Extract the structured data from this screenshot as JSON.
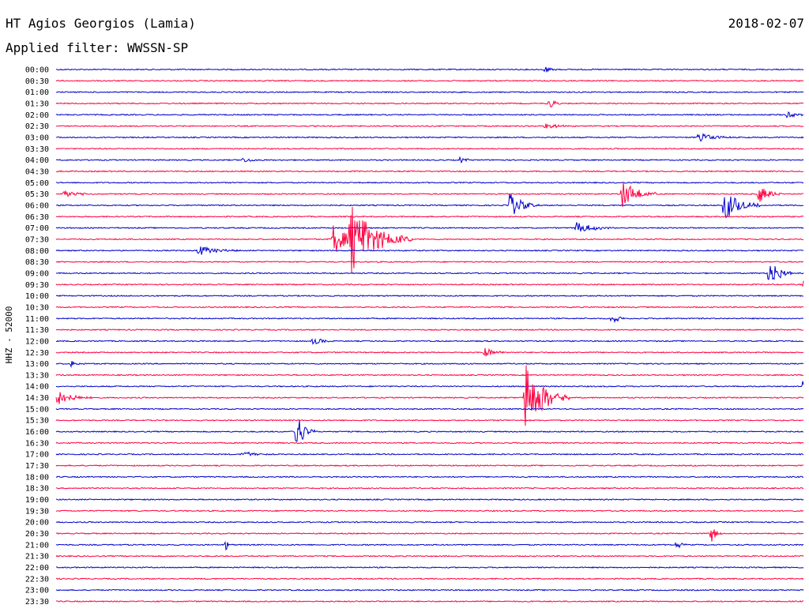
{
  "header": {
    "station": "HT Agios Georgios (Lamia)",
    "date": "2018-02-07",
    "filter": "Applied filter: WWSSN-SP"
  },
  "colors": {
    "blue": "#0000cc",
    "red": "#ff0040"
  },
  "chart_data": {
    "type": "line",
    "ylabel": "HHZ - 52000",
    "row_labels": [
      "00:00",
      "00:30",
      "01:00",
      "01:30",
      "02:00",
      "02:30",
      "03:00",
      "03:30",
      "04:00",
      "04:30",
      "05:00",
      "05:30",
      "06:00",
      "06:30",
      "07:00",
      "07:30",
      "08:00",
      "08:30",
      "09:00",
      "09:30",
      "10:00",
      "10:30",
      "11:00",
      "11:30",
      "12:00",
      "12:30",
      "13:00",
      "13:30",
      "14:00",
      "14:30",
      "15:00",
      "15:30",
      "16:00",
      "16:30",
      "17:00",
      "17:30",
      "18:00",
      "18:30",
      "19:00",
      "19:30",
      "20:00",
      "20:30",
      "21:00",
      "21:30",
      "22:00",
      "22:30",
      "23:00",
      "23:30"
    ],
    "minutes_per_row": 30,
    "events": [
      {
        "row": 0,
        "minute": 19.6,
        "amp": 0.4,
        "dur": 0.6
      },
      {
        "row": 3,
        "minute": 19.8,
        "amp": 0.5,
        "dur": 0.6
      },
      {
        "row": 4,
        "minute": 29.3,
        "amp": 0.3,
        "dur": 1.0
      },
      {
        "row": 5,
        "minute": 19.6,
        "amp": 0.3,
        "dur": 1.2
      },
      {
        "row": 6,
        "minute": 25.8,
        "amp": 0.5,
        "dur": 1.5
      },
      {
        "row": 8,
        "minute": 7.5,
        "amp": 0.3,
        "dur": 0.8
      },
      {
        "row": 8,
        "minute": 16.2,
        "amp": 0.3,
        "dur": 0.6
      },
      {
        "row": 11,
        "minute": 0.3,
        "amp": 0.4,
        "dur": 1.2
      },
      {
        "row": 11,
        "minute": 22.7,
        "amp": 1.4,
        "dur": 1.5
      },
      {
        "row": 11,
        "minute": 28.2,
        "amp": 1.0,
        "dur": 1.0
      },
      {
        "row": 12,
        "minute": 18.2,
        "amp": 1.2,
        "dur": 1.2
      },
      {
        "row": 12,
        "minute": 26.8,
        "amp": 1.5,
        "dur": 1.5
      },
      {
        "row": 14,
        "minute": 20.8,
        "amp": 0.6,
        "dur": 1.8
      },
      {
        "row": 15,
        "minute": 11.1,
        "amp": 1.5,
        "dur": 1.5
      },
      {
        "row": 15,
        "minute": 11.8,
        "amp": 3.2,
        "dur": 2.5
      },
      {
        "row": 16,
        "minute": 5.7,
        "amp": 0.5,
        "dur": 1.8
      },
      {
        "row": 18,
        "minute": 28.6,
        "amp": 1.5,
        "dur": 1.0
      },
      {
        "row": 19,
        "minute": 30.0,
        "amp": 0.4,
        "dur": 0.5
      },
      {
        "row": 22,
        "minute": 22.3,
        "amp": 0.6,
        "dur": 0.6
      },
      {
        "row": 24,
        "minute": 10.3,
        "amp": 0.5,
        "dur": 0.8
      },
      {
        "row": 25,
        "minute": 17.2,
        "amp": 0.5,
        "dur": 1.0
      },
      {
        "row": 26,
        "minute": 0.6,
        "amp": 0.3,
        "dur": 0.8
      },
      {
        "row": 28,
        "minute": 30.0,
        "amp": 1.2,
        "dur": 0.8
      },
      {
        "row": 29,
        "minute": 0.0,
        "amp": 0.8,
        "dur": 1.5
      },
      {
        "row": 29,
        "minute": 18.8,
        "amp": 3.5,
        "dur": 1.8
      },
      {
        "row": 32,
        "minute": 9.6,
        "amp": 2.2,
        "dur": 0.8
      },
      {
        "row": 34,
        "minute": 7.5,
        "amp": 0.4,
        "dur": 1.0
      },
      {
        "row": 41,
        "minute": 26.3,
        "amp": 0.8,
        "dur": 0.5
      },
      {
        "row": 42,
        "minute": 6.8,
        "amp": 0.6,
        "dur": 0.3
      },
      {
        "row": 42,
        "minute": 24.9,
        "amp": 0.5,
        "dur": 0.5
      }
    ]
  }
}
